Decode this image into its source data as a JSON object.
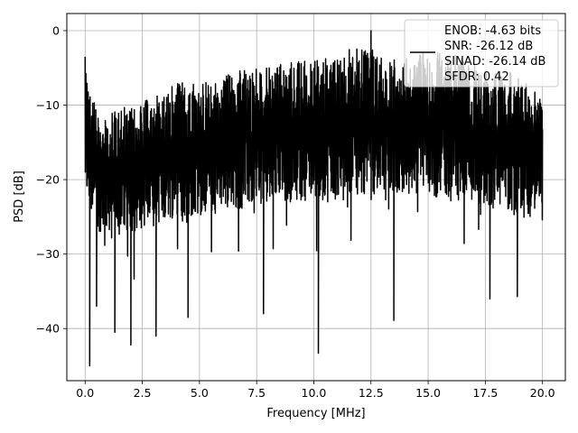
{
  "chart_data": {
    "type": "line",
    "title": "",
    "xlabel": "Frequency [MHz]",
    "ylabel": "PSD [dB]",
    "xlim": [
      -0.8,
      21.0
    ],
    "ylim": [
      -47.0,
      2.3
    ],
    "xticks": [
      0.0,
      2.5,
      5.0,
      7.5,
      10.0,
      12.5,
      15.0,
      17.5,
      20.0
    ],
    "xtick_labels": [
      "0.0",
      "2.5",
      "5.0",
      "7.5",
      "10.0",
      "12.5",
      "15.0",
      "17.5",
      "20.0"
    ],
    "yticks": [
      0,
      -10,
      -20,
      -30,
      -40
    ],
    "ytick_labels": [
      "0",
      "−10",
      "−20",
      "−30",
      "−40"
    ],
    "grid": true,
    "legend_placement": "top-right",
    "series": [
      {
        "color": "#000000",
        "x_range": [
          0.0,
          20.0
        ],
        "band": [
          {
            "x": 0.0,
            "top": -3.5,
            "bottom": -22
          },
          {
            "x": 0.5,
            "top": -11,
            "bottom": -27
          },
          {
            "x": 1.0,
            "top": -11,
            "bottom": -27
          },
          {
            "x": 2.0,
            "top": -10,
            "bottom": -27
          },
          {
            "x": 3.0,
            "top": -9,
            "bottom": -26
          },
          {
            "x": 4.0,
            "top": -7,
            "bottom": -25
          },
          {
            "x": 5.0,
            "top": -7,
            "bottom": -25
          },
          {
            "x": 6.0,
            "top": -6,
            "bottom": -24
          },
          {
            "x": 7.0,
            "top": -5,
            "bottom": -24
          },
          {
            "x": 8.0,
            "top": -5,
            "bottom": -23
          },
          {
            "x": 9.0,
            "top": -4,
            "bottom": -23
          },
          {
            "x": 10.0,
            "top": -4,
            "bottom": -23
          },
          {
            "x": 11.0,
            "top": -3,
            "bottom": -23
          },
          {
            "x": 12.0,
            "top": -2,
            "bottom": -22
          },
          {
            "x": 13.0,
            "top": -3,
            "bottom": -22
          },
          {
            "x": 14.0,
            "top": -3,
            "bottom": -22
          },
          {
            "x": 15.0,
            "top": -3,
            "bottom": -22
          },
          {
            "x": 16.0,
            "top": -3,
            "bottom": -23
          },
          {
            "x": 17.0,
            "top": -4,
            "bottom": -23
          },
          {
            "x": 18.0,
            "top": -5,
            "bottom": -24
          },
          {
            "x": 19.0,
            "top": -6,
            "bottom": -25
          },
          {
            "x": 20.0,
            "top": -9,
            "bottom": -26
          }
        ],
        "peaks": [
          {
            "x": 0.0,
            "y": -3.5
          },
          {
            "x": 12.5,
            "y": 0.0
          }
        ],
        "dips": [
          {
            "x": 0.2,
            "y": -45.0
          },
          {
            "x": 0.5,
            "y": -37.0
          },
          {
            "x": 1.3,
            "y": -40.5
          },
          {
            "x": 2.0,
            "y": -42.2
          },
          {
            "x": 3.1,
            "y": -41.0
          },
          {
            "x": 4.5,
            "y": -38.5
          },
          {
            "x": 7.8,
            "y": -38.0
          },
          {
            "x": 10.2,
            "y": -43.3
          },
          {
            "x": 13.5,
            "y": -38.9
          },
          {
            "x": 17.7,
            "y": -36.0
          },
          {
            "x": 18.9,
            "y": -35.7
          }
        ]
      }
    ],
    "legend_text": [
      "ENOB: -4.63 bits",
      "SNR: -26.12 dB",
      "SINAD: -26.14 dB",
      "SFDR: 0.42"
    ]
  }
}
